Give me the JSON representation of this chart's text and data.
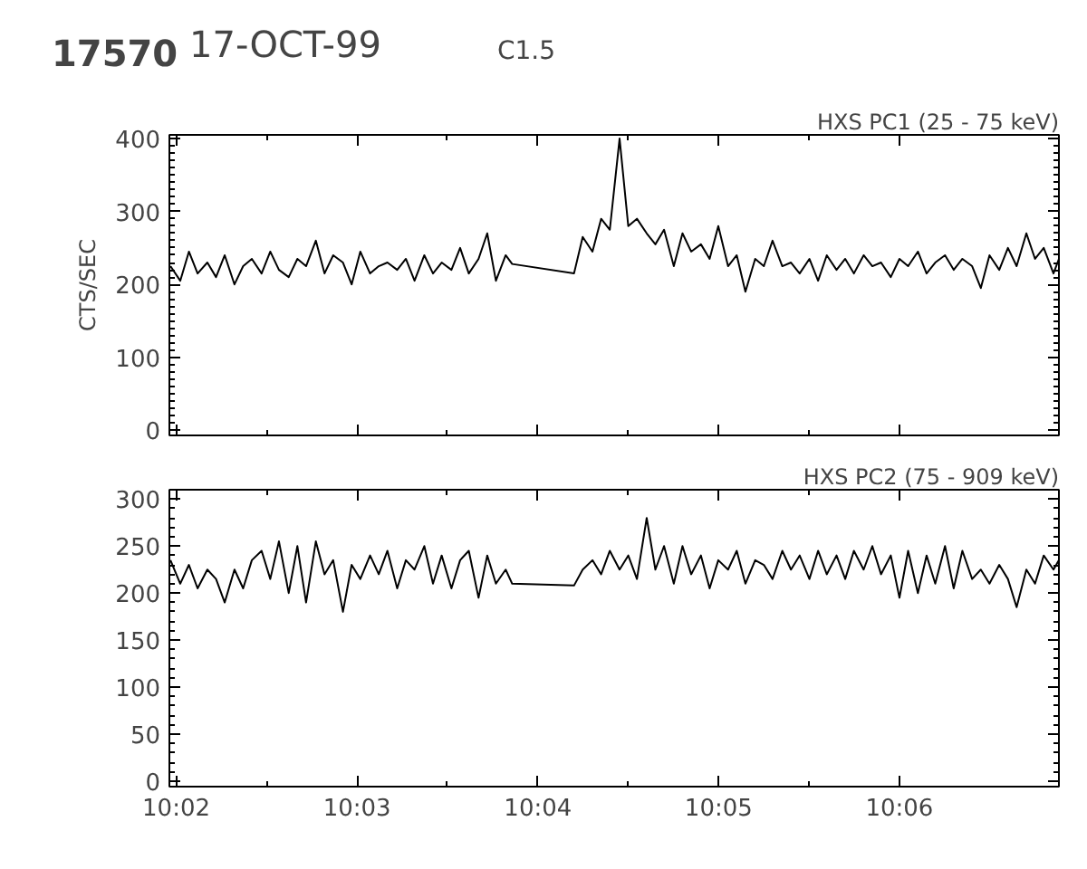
{
  "chart_data": [
    {
      "type": "line",
      "title": "HXS PC1 (25 - 75 keV)",
      "ylabel": "CTS/SEC",
      "annotations": [
        "17570",
        "17-OCT-99",
        "C1.5"
      ],
      "tick_labels": "y",
      "grid": false,
      "line_style": "solid",
      "marker": "none",
      "x": [
        10.0328,
        10.0337,
        10.0345,
        10.0353,
        10.0362,
        10.037,
        10.0378,
        10.0387,
        10.0395,
        10.0403,
        10.0412,
        10.042,
        10.0428,
        10.0437,
        10.0445,
        10.0453,
        10.0462,
        10.047,
        10.0478,
        10.0487,
        10.0495,
        10.0503,
        10.0512,
        10.052,
        10.0528,
        10.0537,
        10.0545,
        10.0553,
        10.0562,
        10.057,
        10.0578,
        10.0587,
        10.0595,
        10.0603,
        10.0612,
        10.062,
        10.0628,
        10.0637,
        10.0643,
        10.07,
        10.0708,
        10.0717,
        10.0725,
        10.0733,
        10.0742,
        10.075,
        10.0758,
        10.0767,
        10.0775,
        10.0783,
        10.0792,
        10.08,
        10.0808,
        10.0817,
        10.0825,
        10.0833,
        10.0842,
        10.085,
        10.0858,
        10.0867,
        10.0875,
        10.0883,
        10.0892,
        10.09,
        10.0908,
        10.0917,
        10.0925,
        10.0933,
        10.0942,
        10.095,
        10.0958,
        10.0967,
        10.0975,
        10.0983,
        10.0992,
        10.1,
        10.1008,
        10.1017,
        10.1025,
        10.1033,
        10.1042,
        10.105,
        10.1058,
        10.1067,
        10.1075,
        10.1083,
        10.1092,
        10.11,
        10.1108,
        10.1117,
        10.1125,
        10.1133,
        10.1142,
        10.1147
      ],
      "series": [
        {
          "color": "#000000",
          "values": [
            225,
            205,
            245,
            215,
            230,
            210,
            240,
            200,
            225,
            235,
            215,
            245,
            220,
            210,
            235,
            225,
            260,
            215,
            240,
            230,
            200,
            245,
            215,
            225,
            230,
            220,
            235,
            205,
            240,
            215,
            230,
            220,
            250,
            215,
            235,
            270,
            205,
            240,
            228,
            215,
            265,
            245,
            290,
            275,
            400,
            280,
            290,
            270,
            255,
            275,
            225,
            270,
            245,
            255,
            235,
            280,
            225,
            240,
            190,
            235,
            225,
            260,
            225,
            230,
            215,
            235,
            205,
            240,
            220,
            235,
            215,
            240,
            225,
            230,
            210,
            235,
            225,
            245,
            215,
            230,
            240,
            220,
            235,
            225,
            195,
            240,
            220,
            250,
            225,
            270,
            235,
            250,
            215,
            235
          ]
        }
      ],
      "xlim": [
        10.0327,
        10.1147
      ],
      "ylim": [
        -7,
        405
      ],
      "yticks": [
        0,
        100,
        200,
        300,
        400
      ],
      "xticks": [
        {
          "value": 10.03333,
          "label": null
        },
        {
          "value": 10.05,
          "label": null
        },
        {
          "value": 10.06667,
          "label": null
        },
        {
          "value": 10.08333,
          "label": null
        },
        {
          "value": 10.1,
          "label": null
        }
      ]
    },
    {
      "type": "line",
      "title": "HXS PC2 (75 - 909 keV)",
      "grid": false,
      "line_style": "solid",
      "marker": "none",
      "x": [
        10.0328,
        10.0337,
        10.0345,
        10.0353,
        10.0362,
        10.037,
        10.0378,
        10.0387,
        10.0395,
        10.0403,
        10.0412,
        10.042,
        10.0428,
        10.0437,
        10.0445,
        10.0453,
        10.0462,
        10.047,
        10.0478,
        10.0487,
        10.0495,
        10.0503,
        10.0512,
        10.052,
        10.0528,
        10.0537,
        10.0545,
        10.0553,
        10.0562,
        10.057,
        10.0578,
        10.0587,
        10.0595,
        10.0603,
        10.0612,
        10.062,
        10.0628,
        10.0637,
        10.0643,
        10.07,
        10.0708,
        10.0717,
        10.0725,
        10.0733,
        10.0742,
        10.075,
        10.0758,
        10.0767,
        10.0775,
        10.0783,
        10.0792,
        10.08,
        10.0808,
        10.0817,
        10.0825,
        10.0833,
        10.0842,
        10.085,
        10.0858,
        10.0867,
        10.0875,
        10.0883,
        10.0892,
        10.09,
        10.0908,
        10.0917,
        10.0925,
        10.0933,
        10.0942,
        10.095,
        10.0958,
        10.0967,
        10.0975,
        10.0983,
        10.0992,
        10.1,
        10.1008,
        10.1017,
        10.1025,
        10.1033,
        10.1042,
        10.105,
        10.1058,
        10.1067,
        10.1075,
        10.1083,
        10.1092,
        10.11,
        10.1108,
        10.1117,
        10.1125,
        10.1133,
        10.1142,
        10.1147
      ],
      "series": [
        {
          "color": "#000000",
          "values": [
            235,
            210,
            230,
            205,
            225,
            215,
            190,
            225,
            205,
            235,
            245,
            215,
            255,
            200,
            250,
            190,
            255,
            220,
            235,
            180,
            230,
            215,
            240,
            220,
            245,
            205,
            235,
            225,
            250,
            210,
            240,
            205,
            235,
            245,
            195,
            240,
            210,
            225,
            210,
            208,
            225,
            235,
            220,
            245,
            225,
            240,
            215,
            280,
            225,
            250,
            210,
            250,
            220,
            240,
            205,
            235,
            225,
            245,
            210,
            235,
            230,
            215,
            245,
            225,
            240,
            215,
            245,
            220,
            240,
            215,
            245,
            225,
            250,
            220,
            240,
            195,
            245,
            200,
            240,
            210,
            250,
            205,
            245,
            215,
            225,
            210,
            230,
            215,
            185,
            225,
            210,
            240,
            225,
            235
          ]
        }
      ],
      "xlim": [
        10.0327,
        10.1147
      ],
      "ylim": [
        -6,
        310
      ],
      "yticks": [
        0,
        50,
        100,
        150,
        200,
        250,
        300
      ],
      "xticks": [
        {
          "value": 10.03333,
          "label": "10:02"
        },
        {
          "value": 10.05,
          "label": "10:03"
        },
        {
          "value": 10.06667,
          "label": "10:04"
        },
        {
          "value": 10.08333,
          "label": "10:05"
        },
        {
          "value": 10.1,
          "label": "10:06"
        }
      ]
    }
  ]
}
